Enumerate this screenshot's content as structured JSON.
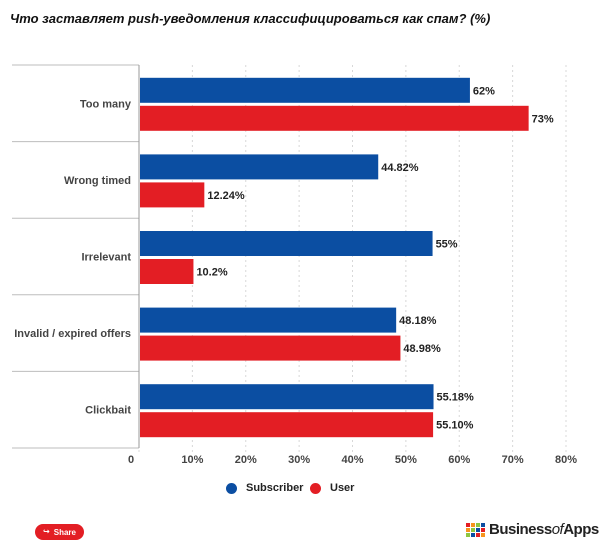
{
  "title": "Что заставляет push-уведомления классифицироваться как спам? (%)",
  "chart_data": {
    "type": "bar",
    "orientation": "horizontal",
    "categories": [
      "Too many",
      "Wrong timed",
      "Irrelevant",
      "Invalid / expired offers",
      "Clickbait"
    ],
    "series": [
      {
        "name": "Subscriber",
        "values": [
          62,
          44.82,
          55,
          48.18,
          55.18
        ],
        "labels": [
          "62%",
          "44.82%",
          "55%",
          "48.18%",
          "55.18%"
        ],
        "color": "#0b4ea2"
      },
      {
        "name": "User",
        "values": [
          73,
          12.24,
          10.2,
          48.98,
          55.1
        ],
        "labels": [
          "73%",
          "12.24%",
          "10.2%",
          "48.98%",
          "55.10%"
        ],
        "color": "#e31e24"
      }
    ],
    "xlim": [
      0,
      80
    ],
    "ticks": [
      "0",
      "10%",
      "20%",
      "30%",
      "40%",
      "50%",
      "60%",
      "70%",
      "80%"
    ],
    "grid": true,
    "legend": "bottom-center"
  },
  "share_label": "Share",
  "share_icon": "share-icon",
  "brand": {
    "name_part1": "Business",
    "name_part2": "of",
    "name_part3": "Apps"
  },
  "brand_colors": [
    "#e31e24",
    "#f7941d",
    "#8dc63f",
    "#0b4ea2"
  ]
}
